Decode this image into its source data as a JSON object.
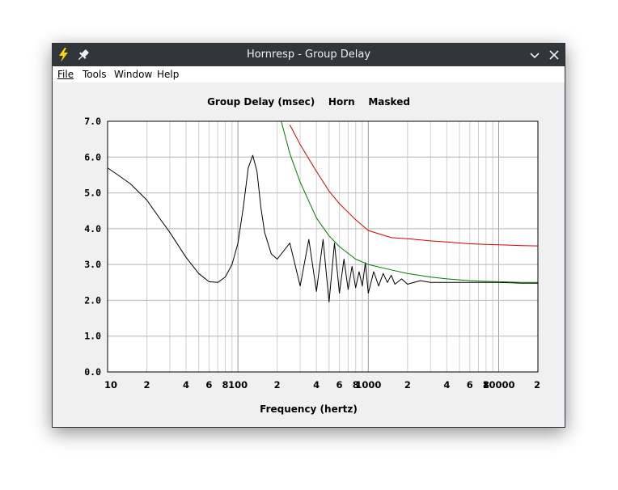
{
  "window": {
    "title": "Hornresp - Group Delay",
    "icons": {
      "app": "lightning-bolt-icon",
      "pin": "pin-icon",
      "minimize": "chevron-down-icon",
      "close": "close-icon"
    }
  },
  "menu": [
    {
      "label": "File"
    },
    {
      "label": "Tools"
    },
    {
      "label": "Window"
    },
    {
      "label": "Help"
    }
  ],
  "chart_title": "Group Delay (msec)    Horn    Masked",
  "colors": {
    "background": "#f0f0f0",
    "titlebar": "#31363b",
    "grid": "#b4b4b4",
    "trace_black": "#000000",
    "trace_red": "#d40000",
    "trace_green": "#007a00"
  },
  "chart_data": {
    "type": "line",
    "title": "Group Delay (msec)    Horn    Masked",
    "xlabel": "Frequency (hertz)",
    "ylabel": "",
    "xscale": "log",
    "xlim": [
      10,
      20000
    ],
    "ylim": [
      0,
      7
    ],
    "grid": true,
    "ytick_labels": [
      "0.0",
      "1.0",
      "2.0",
      "3.0",
      "4.0",
      "5.0",
      "6.0",
      "7.0"
    ],
    "xtick_labels": [
      {
        "x": 10,
        "label": "10"
      },
      {
        "x": 20,
        "label": "2"
      },
      {
        "x": 40,
        "label": "4"
      },
      {
        "x": 60,
        "label": "6"
      },
      {
        "x": 80,
        "label": "8"
      },
      {
        "x": 100,
        "label": "100"
      },
      {
        "x": 200,
        "label": "2"
      },
      {
        "x": 400,
        "label": "4"
      },
      {
        "x": 600,
        "label": "6"
      },
      {
        "x": 800,
        "label": "8"
      },
      {
        "x": 1000,
        "label": "1000"
      },
      {
        "x": 2000,
        "label": "2"
      },
      {
        "x": 4000,
        "label": "4"
      },
      {
        "x": 6000,
        "label": "6"
      },
      {
        "x": 8000,
        "label": "8"
      },
      {
        "x": 10000,
        "label": "10000"
      },
      {
        "x": 20000,
        "label": "2"
      }
    ],
    "series": [
      {
        "color": "#000000",
        "x": [
          10,
          12,
          15,
          20,
          25,
          30,
          40,
          50,
          60,
          70,
          80,
          90,
          100,
          110,
          120,
          130,
          140,
          150,
          160,
          180,
          200,
          250,
          300,
          350,
          400,
          450,
          500,
          550,
          600,
          650,
          700,
          750,
          800,
          850,
          900,
          950,
          1000,
          1100,
          1200,
          1300,
          1400,
          1500,
          1600,
          1800,
          2000,
          2500,
          3000,
          4000,
          5000,
          6000,
          8000,
          10000,
          15000,
          20000
        ],
        "y": [
          5.7,
          5.5,
          5.25,
          4.8,
          4.3,
          3.9,
          3.2,
          2.75,
          2.52,
          2.5,
          2.65,
          3.0,
          3.6,
          4.6,
          5.7,
          6.05,
          5.6,
          4.6,
          3.9,
          3.3,
          3.15,
          3.6,
          2.4,
          3.7,
          2.25,
          3.7,
          1.95,
          3.6,
          2.2,
          3.15,
          2.3,
          2.95,
          2.35,
          2.8,
          2.4,
          3.05,
          2.2,
          2.8,
          2.4,
          2.75,
          2.5,
          2.7,
          2.45,
          2.6,
          2.45,
          2.55,
          2.5,
          2.5,
          2.5,
          2.5,
          2.5,
          2.5,
          2.48,
          2.48
        ]
      },
      {
        "color": "#d40000",
        "x": [
          250,
          300,
          400,
          500,
          600,
          800,
          1000,
          1500,
          2000,
          3000,
          4000,
          6000,
          8000,
          10000,
          15000,
          20000
        ],
        "y": [
          6.9,
          6.35,
          5.6,
          5.05,
          4.7,
          4.25,
          3.95,
          3.75,
          3.72,
          3.66,
          3.63,
          3.58,
          3.56,
          3.55,
          3.53,
          3.52
        ]
      },
      {
        "color": "#007a00",
        "x": [
          215,
          250,
          300,
          400,
          500,
          600,
          800,
          1000,
          1500,
          2000,
          3000,
          4000,
          6000,
          8000,
          10000,
          15000,
          20000
        ],
        "y": [
          7.0,
          6.1,
          5.3,
          4.3,
          3.8,
          3.5,
          3.15,
          3.0,
          2.85,
          2.75,
          2.65,
          2.6,
          2.55,
          2.53,
          2.52,
          2.5,
          2.5
        ]
      }
    ]
  }
}
